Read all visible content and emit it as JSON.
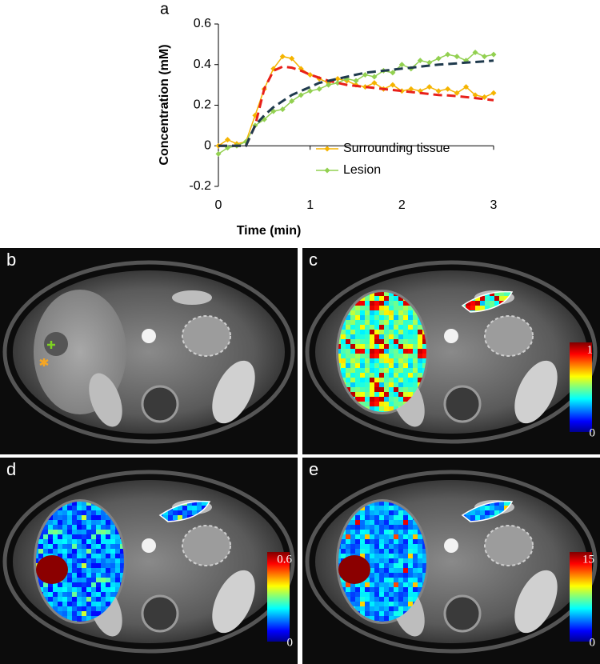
{
  "chart_data": {
    "type": "line",
    "panel_label": "a",
    "xlabel": "Time (min)",
    "ylabel": "Concentration (mM)",
    "x": [
      0,
      0.1,
      0.2,
      0.3,
      0.4,
      0.5,
      0.6,
      0.7,
      0.8,
      0.9,
      1.0,
      1.1,
      1.2,
      1.3,
      1.4,
      1.5,
      1.6,
      1.7,
      1.8,
      1.9,
      2.0,
      2.1,
      2.2,
      2.3,
      2.4,
      2.5,
      2.6,
      2.7,
      2.8,
      2.9,
      3.0
    ],
    "series": [
      {
        "name": "Surrounding tissue",
        "color": "#f5b400",
        "values": [
          0,
          0.03,
          0.01,
          0.02,
          0.15,
          0.28,
          0.38,
          0.44,
          0.43,
          0.38,
          0.35,
          0.33,
          0.31,
          0.33,
          0.32,
          0.3,
          0.29,
          0.31,
          0.28,
          0.3,
          0.27,
          0.28,
          0.27,
          0.29,
          0.27,
          0.28,
          0.26,
          0.29,
          0.25,
          0.24,
          0.26
        ]
      },
      {
        "name": "Lesion",
        "color": "#92d050",
        "values": [
          -0.04,
          -0.01,
          0.0,
          0.02,
          0.1,
          0.13,
          0.17,
          0.18,
          0.22,
          0.25,
          0.27,
          0.28,
          0.3,
          0.31,
          0.33,
          0.32,
          0.35,
          0.34,
          0.37,
          0.36,
          0.4,
          0.38,
          0.42,
          0.41,
          0.43,
          0.45,
          0.44,
          0.42,
          0.46,
          0.44,
          0.45
        ]
      }
    ],
    "fits": [
      {
        "color": "#e8201a",
        "values": [
          0,
          0,
          0,
          0,
          0.1,
          0.28,
          0.37,
          0.39,
          0.385,
          0.37,
          0.35,
          0.335,
          0.32,
          0.31,
          0.3,
          0.295,
          0.29,
          0.285,
          0.28,
          0.275,
          0.27,
          0.265,
          0.26,
          0.255,
          0.25,
          0.248,
          0.245,
          0.24,
          0.235,
          0.23,
          0.225
        ]
      },
      {
        "color": "#1f3a4d",
        "values": [
          0,
          0,
          0,
          0,
          0.1,
          0.15,
          0.19,
          0.22,
          0.25,
          0.27,
          0.29,
          0.31,
          0.32,
          0.33,
          0.34,
          0.35,
          0.36,
          0.365,
          0.37,
          0.375,
          0.38,
          0.385,
          0.39,
          0.395,
          0.4,
          0.403,
          0.406,
          0.41,
          0.413,
          0.416,
          0.42
        ]
      }
    ],
    "xlim": [
      0,
      3
    ],
    "xticks": [
      0,
      1,
      2,
      3
    ],
    "ylim": [
      -0.2,
      0.6
    ],
    "yticks": [
      -0.2,
      0,
      0.2,
      0.4,
      0.6
    ],
    "legend": "lower right"
  },
  "panels": [
    {
      "label": "b"
    },
    {
      "label": "c",
      "colorbar": {
        "max": 1,
        "min": 0
      }
    },
    {
      "label": "d",
      "colorbar": {
        "max": 0.6,
        "min": 0
      }
    },
    {
      "label": "e",
      "colorbar": {
        "max": 15,
        "min": 0
      }
    }
  ]
}
